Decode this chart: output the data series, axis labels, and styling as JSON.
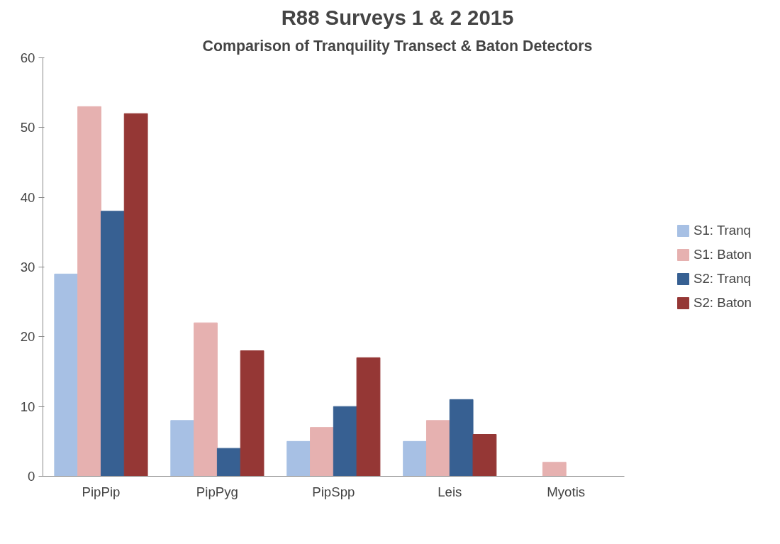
{
  "chart_data": {
    "type": "bar",
    "title": "R88 Surveys 1 & 2 2015",
    "subtitle": "Comparison of Tranquility Transect & Baton Detectors",
    "categories": [
      "PipPip",
      "PipPyg",
      "PipSpp",
      "Leis",
      "Myotis"
    ],
    "series": [
      {
        "name": "S1: Tranq",
        "color": "#a7c0e4",
        "values": [
          29,
          8,
          5,
          5,
          0
        ]
      },
      {
        "name": "S1: Baton",
        "color": "#e6b1b0",
        "values": [
          53,
          22,
          7,
          8,
          2
        ]
      },
      {
        "name": "S2: Tranq",
        "color": "#376092",
        "values": [
          38,
          4,
          10,
          11,
          0
        ]
      },
      {
        "name": "S2: Baton",
        "color": "#953735",
        "values": [
          52,
          18,
          17,
          6,
          0
        ]
      }
    ],
    "ylim": [
      0,
      60
    ],
    "yticks": [
      0,
      10,
      20,
      30,
      40,
      50,
      60
    ],
    "grid": false,
    "legend": "right"
  }
}
